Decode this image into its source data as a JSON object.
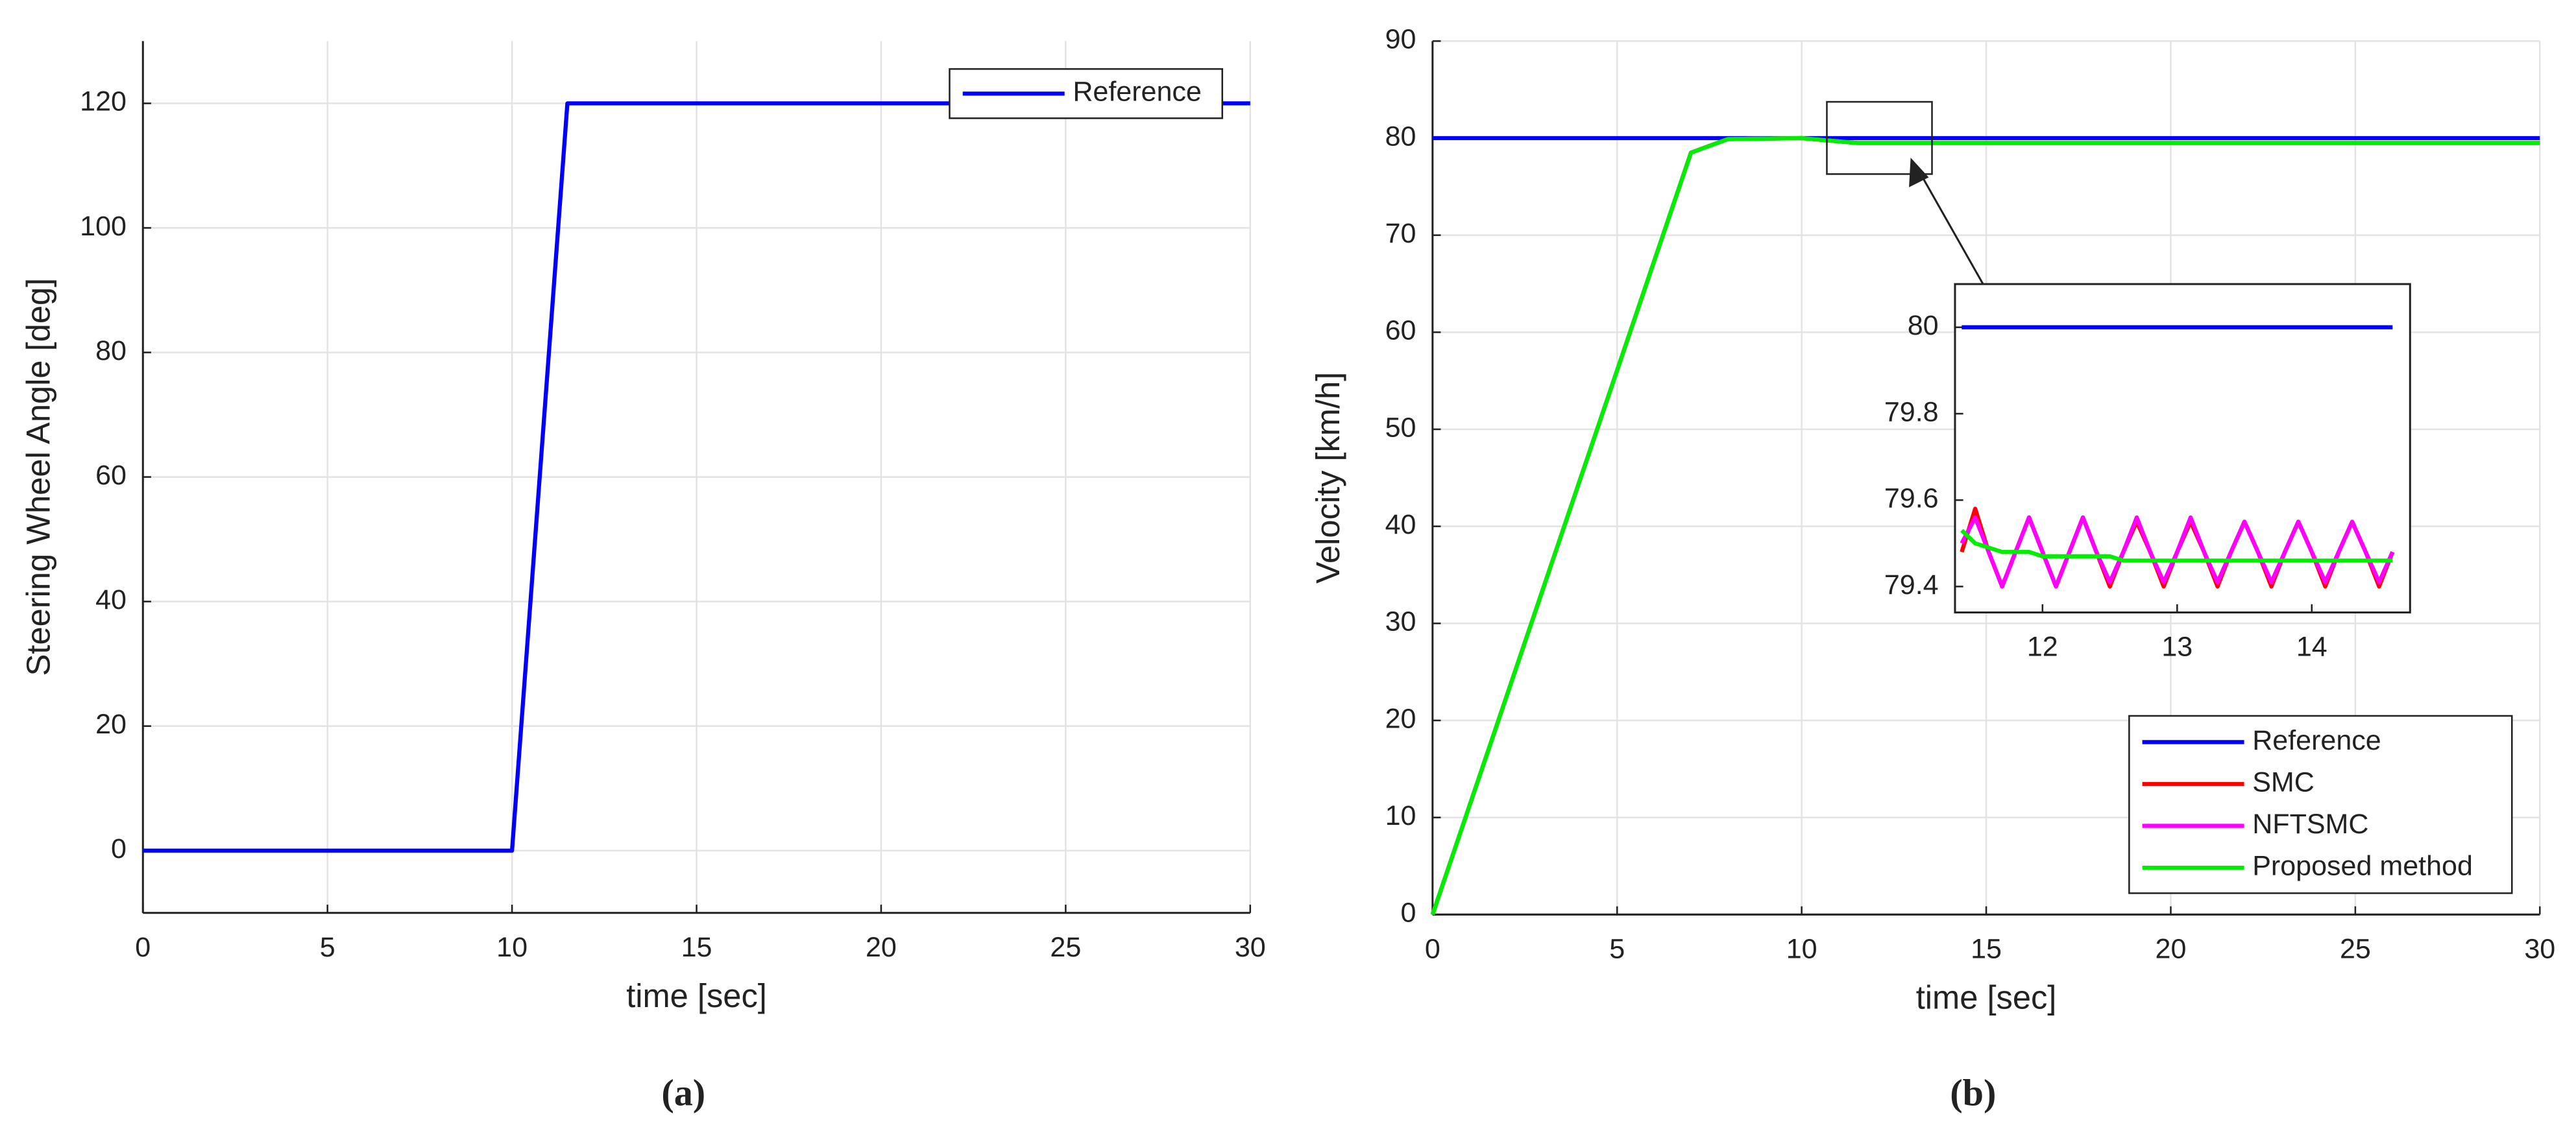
{
  "chart_data": [
    {
      "type": "line",
      "caption": "(a)",
      "xlabel": "time [sec]",
      "ylabel": "Steering Wheel Angle [deg]",
      "xlim": [
        0,
        30
      ],
      "xticks": [
        0,
        5,
        10,
        15,
        20,
        25,
        30
      ],
      "ylim": [
        -10,
        130
      ],
      "yticks": [
        0,
        20,
        40,
        60,
        80,
        100,
        120
      ],
      "grid": true,
      "legend": "upper right",
      "x": [
        0,
        10,
        11.5,
        30
      ],
      "series": [
        {
          "name": "Reference",
          "color": "#0000ff",
          "values": [
            0,
            0,
            120,
            120
          ]
        }
      ]
    },
    {
      "type": "line",
      "caption": "(b)",
      "xlabel": "time [sec]",
      "ylabel": "Velocity [km/h]",
      "xlim": [
        0,
        30
      ],
      "xticks": [
        0,
        5,
        10,
        15,
        20,
        25,
        30
      ],
      "ylim": [
        0,
        90
      ],
      "yticks": [
        0,
        10,
        20,
        30,
        40,
        50,
        60,
        70,
        80,
        90
      ],
      "grid": true,
      "legend": "lower right",
      "x": [
        0,
        7,
        8,
        10,
        11.5,
        30
      ],
      "series": [
        {
          "name": "Reference",
          "color": "#0000ff",
          "values": [
            80,
            80,
            80,
            80,
            80,
            80
          ]
        },
        {
          "name": "SMC",
          "color": "#ff0000",
          "values": [
            0,
            78.5,
            79.9,
            80,
            79.5,
            79.5
          ]
        },
        {
          "name": "NFTSMC",
          "color": "#ff00ff",
          "values": [
            0,
            78.5,
            79.9,
            80,
            79.5,
            79.5
          ]
        },
        {
          "name": "Proposed method",
          "color": "#00ee00",
          "values": [
            0,
            78.5,
            79.9,
            80,
            79.5,
            79.5
          ]
        }
      ],
      "inset": {
        "xlim": [
          11.35,
          14.73
        ],
        "xticks": [
          12,
          13,
          14
        ],
        "ylim": [
          79.34,
          80.1
        ],
        "yticks": [
          79.4,
          79.6,
          79.8,
          80
        ],
        "x": [
          11.4,
          11.5,
          11.6,
          11.7,
          11.8,
          11.9,
          12,
          12.1,
          12.2,
          12.3,
          12.4,
          12.5,
          12.6,
          12.7,
          12.8,
          12.9,
          13,
          13.1,
          13.2,
          13.3,
          13.4,
          13.5,
          13.6,
          13.7,
          13.8,
          13.9,
          14,
          14.1,
          14.2,
          14.3,
          14.4,
          14.5,
          14.6
        ],
        "series": [
          {
            "color": "#0000ff",
            "values": [
              80,
              80,
              80,
              80,
              80,
              80,
              80,
              80,
              80,
              80,
              80,
              80,
              80,
              80,
              80,
              80,
              80,
              80,
              80,
              80,
              80,
              80,
              80,
              80,
              80,
              80,
              80,
              80,
              80,
              80,
              80,
              80,
              80
            ]
          },
          {
            "color": "#ff0000",
            "values": [
              79.48,
              79.58,
              79.48,
              79.4,
              79.48,
              79.56,
              79.48,
              79.4,
              79.48,
              79.56,
              79.48,
              79.4,
              79.48,
              79.55,
              79.48,
              79.4,
              79.48,
              79.55,
              79.48,
              79.4,
              79.48,
              79.55,
              79.48,
              79.4,
              79.48,
              79.55,
              79.48,
              79.4,
              79.48,
              79.55,
              79.48,
              79.4,
              79.48
            ]
          },
          {
            "color": "#ff00ff",
            "values": [
              79.5,
              79.56,
              79.48,
              79.4,
              79.48,
              79.56,
              79.48,
              79.4,
              79.48,
              79.56,
              79.48,
              79.41,
              79.48,
              79.56,
              79.48,
              79.41,
              79.48,
              79.56,
              79.48,
              79.41,
              79.48,
              79.55,
              79.48,
              79.41,
              79.48,
              79.55,
              79.48,
              79.41,
              79.48,
              79.55,
              79.48,
              79.41,
              79.48
            ]
          },
          {
            "color": "#00ee00",
            "values": [
              79.53,
              79.5,
              79.49,
              79.48,
              79.48,
              79.48,
              79.47,
              79.47,
              79.47,
              79.47,
              79.47,
              79.47,
              79.46,
              79.46,
              79.46,
              79.46,
              79.46,
              79.46,
              79.46,
              79.46,
              79.46,
              79.46,
              79.46,
              79.46,
              79.46,
              79.46,
              79.46,
              79.46,
              79.46,
              79.46,
              79.46,
              79.46,
              79.46
            ]
          }
        ]
      }
    }
  ]
}
